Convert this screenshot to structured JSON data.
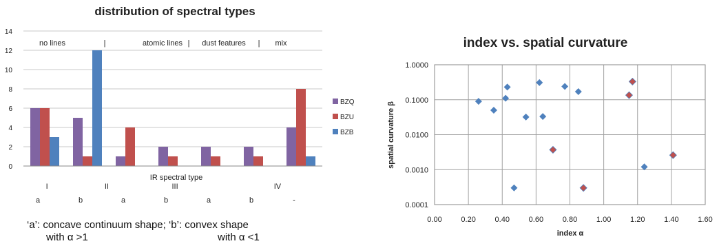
{
  "chart_data": [
    {
      "type": "bar",
      "title": "distribution of spectral types",
      "xlabel": "IR spectral  type",
      "ylabel": "",
      "ylim": [
        0,
        14
      ],
      "yticks": [
        0,
        2,
        4,
        6,
        8,
        10,
        12,
        14
      ],
      "grid": true,
      "legend": "right",
      "categories": [
        "a",
        "b",
        "a",
        "b",
        "a",
        "b",
        "-"
      ],
      "groups": [
        "I",
        "II",
        "III",
        "IV"
      ],
      "regions": [
        "no lines",
        "|",
        "atomic lines",
        "|",
        "dust features",
        "|",
        "mix"
      ],
      "series": [
        {
          "name": "BZQ",
          "color": "#8064a2",
          "values": [
            6,
            5,
            1,
            2,
            2,
            2,
            4
          ]
        },
        {
          "name": "BZU",
          "color": "#c0504d",
          "values": [
            6,
            1,
            4,
            1,
            1,
            1,
            8
          ]
        },
        {
          "name": "BZB",
          "color": "#4f81bd",
          "values": [
            3,
            12,
            0,
            0,
            0,
            0,
            1
          ]
        }
      ],
      "notes": [
        "‘a’: concave continuum shape;  ‘b’: convex shape",
        "with α  >1",
        "with α  <1"
      ]
    },
    {
      "type": "scatter",
      "title": "index vs. spatial curvature",
      "xlabel": "index α",
      "ylabel": "spatial curvature β",
      "xlim": [
        0.0,
        1.6
      ],
      "xticks": [
        "0.00",
        "0.20",
        "0.40",
        "0.60",
        "0.80",
        "1.00",
        "1.20",
        "1.40",
        "1.60"
      ],
      "xtick_values": [
        0,
        0.2,
        0.4,
        0.6,
        0.8,
        1.0,
        1.2,
        1.4,
        1.6
      ],
      "ylim": [
        0.0001,
        1.0
      ],
      "yscale": "log",
      "yticks": [
        "0.0001",
        "0.0010",
        "0.0100",
        "0.1000",
        "1.0000"
      ],
      "ytick_values": [
        0.0001,
        0.001,
        0.01,
        0.1,
        1.0
      ],
      "grid": true,
      "series": [
        {
          "color": "#4f81bd",
          "points": [
            [
              0.26,
              0.09
            ],
            [
              0.35,
              0.05
            ],
            [
              0.42,
              0.11
            ],
            [
              0.43,
              0.23
            ],
            [
              0.47,
              0.0003
            ],
            [
              0.54,
              0.032
            ],
            [
              0.62,
              0.31
            ],
            [
              0.64,
              0.033
            ],
            [
              0.77,
              0.24
            ],
            [
              0.85,
              0.17
            ],
            [
              1.24,
              0.0012
            ]
          ]
        },
        {
          "color": "#c0504d",
          "points": [
            [
              0.7,
              0.0037
            ],
            [
              0.88,
              0.0003
            ],
            [
              1.15,
              0.135
            ],
            [
              1.17,
              0.33
            ],
            [
              1.41,
              0.0026
            ]
          ]
        }
      ]
    }
  ]
}
